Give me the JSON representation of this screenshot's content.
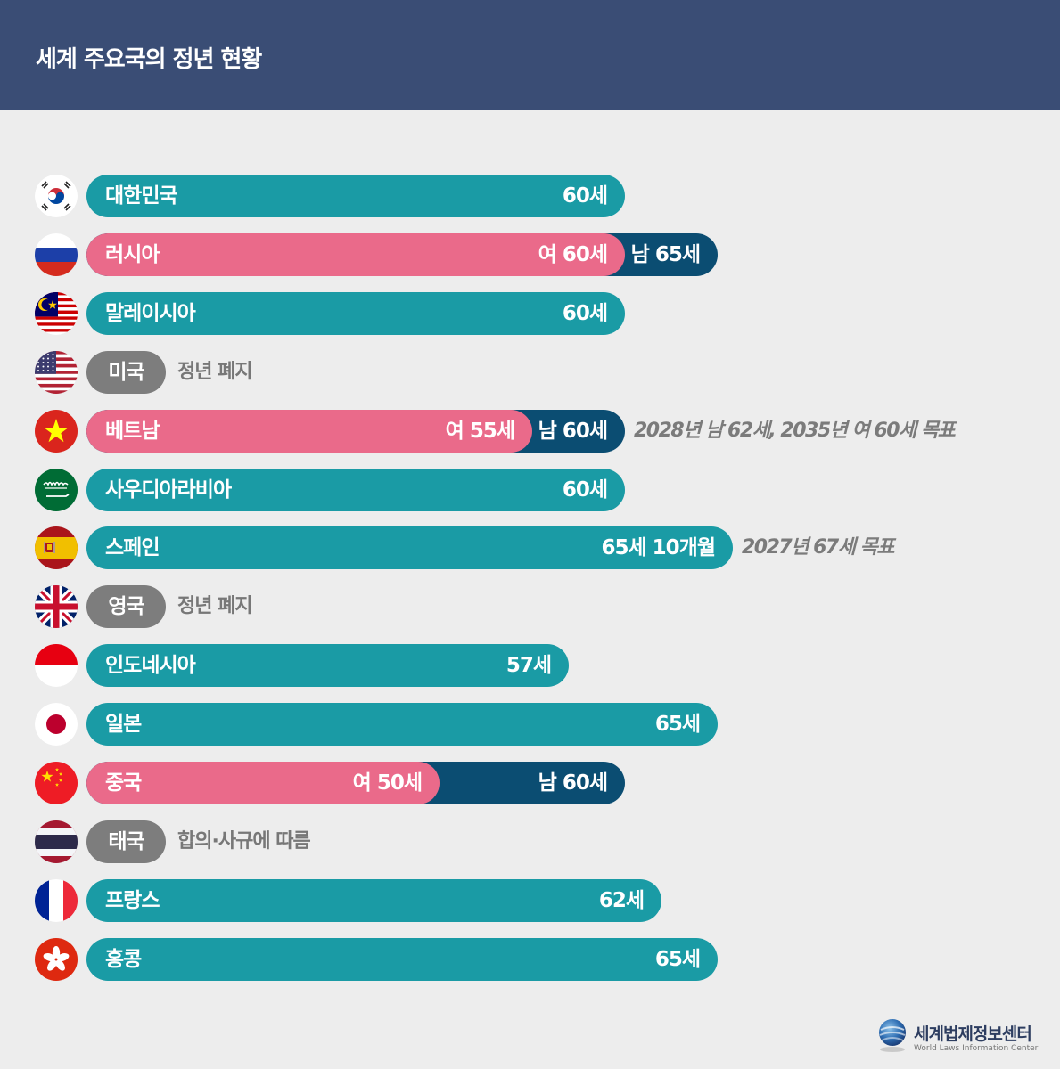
{
  "title": "세계 주요국의 정년 현황",
  "colors": {
    "header": "#3a4d75",
    "common": "#1a9ba5",
    "female": "#ea6a8a",
    "male": "#0b4d72",
    "no_limit": "#7d7d7d"
  },
  "chart_data": {
    "type": "bar",
    "title": "세계 주요국의 정년 현황",
    "xlabel": "",
    "ylabel": "",
    "categories": [
      "대한민국",
      "러시아",
      "말레이시아",
      "미국",
      "베트남",
      "사우디아라비아",
      "스페인",
      "영국",
      "인도네시아",
      "일본",
      "중국",
      "태국",
      "프랑스",
      "홍콩"
    ],
    "rows": [
      {
        "country": "대한민국",
        "flag": "korea-flag-icon",
        "kind": "single",
        "value": 60,
        "label": "60세"
      },
      {
        "country": "러시아",
        "flag": "russia-flag-icon",
        "kind": "split",
        "female": 60,
        "male": 65,
        "female_label": "여 60세",
        "male_label": "남 65세"
      },
      {
        "country": "말레이시아",
        "flag": "malaysia-flag-icon",
        "kind": "single",
        "value": 60,
        "label": "60세"
      },
      {
        "country": "미국",
        "flag": "usa-flag-icon",
        "kind": "none",
        "note": "정년 폐지"
      },
      {
        "country": "베트남",
        "flag": "vietnam-flag-icon",
        "kind": "split",
        "female": 55,
        "male": 60,
        "female_label": "여 55세",
        "male_label": "남 60세",
        "target": "2028년 남 62세, 2035년 여 60세 목표"
      },
      {
        "country": "사우디아라비아",
        "flag": "saudi-flag-icon",
        "kind": "single",
        "value": 60,
        "label": "60세"
      },
      {
        "country": "스페인",
        "flag": "spain-flag-icon",
        "kind": "single",
        "value": 65.83,
        "label": "65세 10개월",
        "target": "2027년 67세 목표"
      },
      {
        "country": "영국",
        "flag": "uk-flag-icon",
        "kind": "none",
        "note": "정년 폐지"
      },
      {
        "country": "인도네시아",
        "flag": "indonesia-flag-icon",
        "kind": "single",
        "value": 57,
        "label": "57세"
      },
      {
        "country": "일본",
        "flag": "japan-flag-icon",
        "kind": "single",
        "value": 65,
        "label": "65세"
      },
      {
        "country": "중국",
        "flag": "china-flag-icon",
        "kind": "split",
        "female": 50,
        "male": 60,
        "female_label": "여 50세",
        "male_label": "남 60세"
      },
      {
        "country": "태국",
        "flag": "thailand-flag-icon",
        "kind": "none",
        "note": "합의·사규에 따름"
      },
      {
        "country": "프랑스",
        "flag": "france-flag-icon",
        "kind": "single",
        "value": 62,
        "label": "62세"
      },
      {
        "country": "홍콩",
        "flag": "hongkong-flag-icon",
        "kind": "single",
        "value": 65,
        "label": "65세"
      }
    ]
  },
  "logo": {
    "name_ko": "세계법제정보센터",
    "name_en": "World Laws Information Center"
  }
}
